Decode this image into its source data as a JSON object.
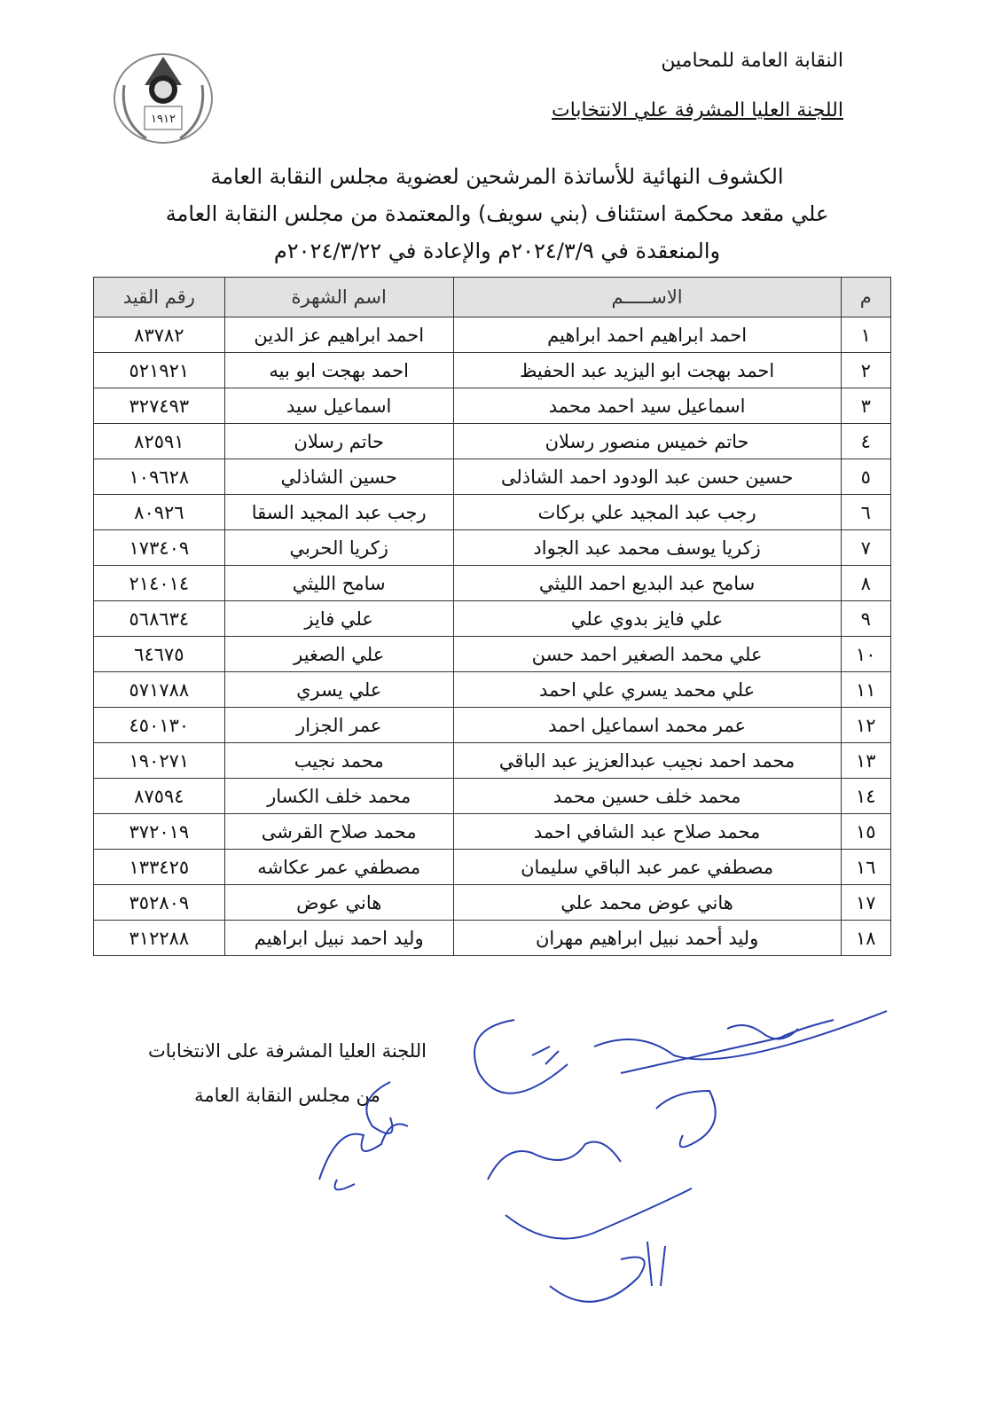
{
  "header": {
    "organization": "النقابة العامة للمحامين",
    "committee": "اللجنة العليا المشرفة علي الانتخابات",
    "logo_text": "١٩١٢ مصر"
  },
  "heading": {
    "line1": "الكشوف النهائية للأساتذة المرشحين لعضوية مجلس النقابة العامة",
    "line2": "علي مقعد محكمة استئناف (بني سويف) والمعتمدة من مجلس النقابة العامة",
    "line3": "والمنعقدة في ٢٠٢٤/٣/٩م والإعادة في ٢٠٢٤/٣/٢٢م"
  },
  "table": {
    "columns": [
      "م",
      "الاســـــم",
      "اسم الشهرة",
      "رقم القيد"
    ],
    "rows": [
      {
        "n": "١",
        "name": "احمد ابراهيم احمد ابراهيم",
        "fame": "احمد ابراهيم عز الدين",
        "reg": "٨٣٧٨٢"
      },
      {
        "n": "٢",
        "name": "احمد بهجت ابو اليزيد عبد الحفيظ",
        "fame": "احمد بهجت ابو بيه",
        "reg": "٥٢١٩٢١"
      },
      {
        "n": "٣",
        "name": "اسماعيل سيد احمد محمد",
        "fame": "اسماعيل سيد",
        "reg": "٣٢٧٤٩٣"
      },
      {
        "n": "٤",
        "name": "حاتم خميس منصور رسلان",
        "fame": "حاتم رسلان",
        "reg": "٨٢٥٩١"
      },
      {
        "n": "٥",
        "name": "حسين حسن عبد الودود احمد الشاذلى",
        "fame": "حسين الشاذلي",
        "reg": "١٠٩٦٢٨"
      },
      {
        "n": "٦",
        "name": "رجب عبد المجيد علي بركات",
        "fame": "رجب عبد المجيد السقا",
        "reg": "٨٠٩٢٦"
      },
      {
        "n": "٧",
        "name": "زكريا يوسف محمد عبد الجواد",
        "fame": "زكريا الحربي",
        "reg": "١٧٣٤٠٩"
      },
      {
        "n": "٨",
        "name": "سامح عبد البديع احمد الليثي",
        "fame": "سامح الليثي",
        "reg": "٢١٤٠١٤"
      },
      {
        "n": "٩",
        "name": "علي فايز بدوي علي",
        "fame": "علي فايز",
        "reg": "٥٦٨٦٣٤"
      },
      {
        "n": "١٠",
        "name": "علي محمد الصغير احمد حسن",
        "fame": "علي الصغير",
        "reg": "٦٤٦٧٥"
      },
      {
        "n": "١١",
        "name": "علي محمد يسري علي احمد",
        "fame": "علي يسري",
        "reg": "٥٧١٧٨٨"
      },
      {
        "n": "١٢",
        "name": "عمر محمد اسماعيل احمد",
        "fame": "عمر الجزار",
        "reg": "٤٥٠١٣٠"
      },
      {
        "n": "١٣",
        "name": "محمد احمد نجيب عبدالعزيز عبد الباقي",
        "fame": "محمد نجيب",
        "reg": "١٩٠٢٧١"
      },
      {
        "n": "١٤",
        "name": "محمد خلف حسين محمد",
        "fame": "محمد خلف الكسار",
        "reg": "٨٧٥٩٤"
      },
      {
        "n": "١٥",
        "name": "محمد صلاح عبد الشافي احمد",
        "fame": "محمد صلاح القرشى",
        "reg": "٣٧٢٠١٩"
      },
      {
        "n": "١٦",
        "name": "مصطفي عمر عبد الباقي سليمان",
        "fame": "مصطفي عمر عكاشه",
        "reg": "١٣٣٤٢٥"
      },
      {
        "n": "١٧",
        "name": "هاني عوض محمد علي",
        "fame": "هاني عوض",
        "reg": "٣٥٢٨٠٩"
      },
      {
        "n": "١٨",
        "name": "وليد أحمد نبيل ابراهيم مهران",
        "fame": "وليد احمد نبيل ابراهيم",
        "reg": "٣١٢٢٨٨"
      }
    ]
  },
  "footer": {
    "line1": "اللجنة العليا المشرفة على الانتخابات",
    "line2": "من مجلس النقابة العامة"
  },
  "colors": {
    "ink": "#111111",
    "header_fill": "#e2e2e2",
    "signature": "#2a3fb0"
  }
}
